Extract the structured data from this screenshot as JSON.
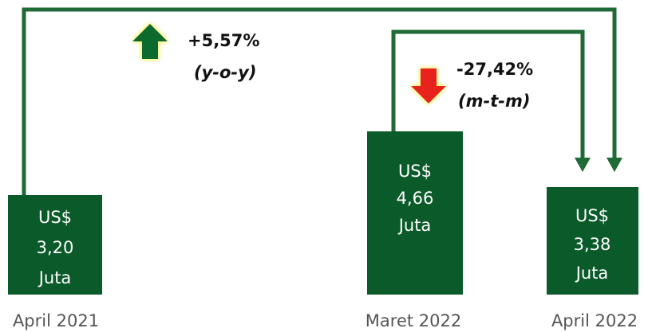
{
  "bars": [
    {
      "lines": [
        "US$",
        "3,20",
        "Juta"
      ],
      "label": "April 2021"
    },
    {
      "lines": [
        "US$",
        "4,66",
        "Juta"
      ],
      "label": "Maret 2022"
    },
    {
      "lines": [
        "US$",
        "3,38",
        "Juta"
      ],
      "label": "April 2022"
    }
  ],
  "changes": [
    {
      "value": "+5,57%",
      "period": "(y-o-y)"
    },
    {
      "value": "-27,42%",
      "period": "(m-t-m)"
    }
  ]
}
